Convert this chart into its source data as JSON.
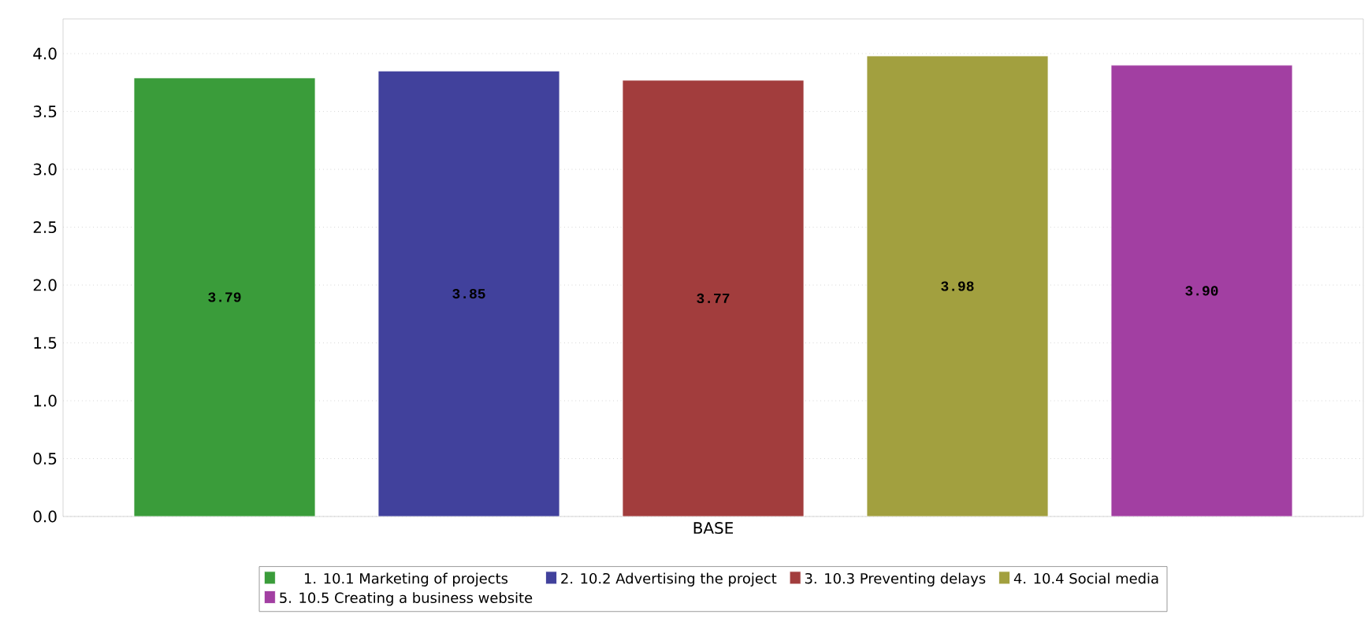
{
  "chart_data": {
    "type": "bar",
    "categories": [
      "BASE"
    ],
    "series": [
      {
        "name": "1. 10.1 Marketing of projects",
        "color": "#3a9c3a",
        "values": [
          3.79
        ],
        "value_labels": [
          "3.79"
        ]
      },
      {
        "name": "2. 10.2 Advertising the project",
        "color": "#41419c",
        "values": [
          3.85
        ],
        "value_labels": [
          "3.85"
        ]
      },
      {
        "name": "3. 10.3 Preventing delays",
        "color": "#a23d3d",
        "values": [
          3.77
        ],
        "value_labels": [
          "3.77"
        ]
      },
      {
        "name": "4. 10.4 Social media",
        "color": "#a2a03f",
        "values": [
          3.98
        ],
        "value_labels": [
          "3.98"
        ]
      },
      {
        "name": "5. 10.5 Creating a business website",
        "color": "#a23fa2",
        "values": [
          3.9
        ],
        "value_labels": [
          "3.90"
        ]
      }
    ],
    "ylim": [
      0,
      4.3
    ],
    "yticks": [
      {
        "value": 0,
        "label": "0.0"
      },
      {
        "value": 0.5,
        "label": "0.5"
      },
      {
        "value": 1,
        "label": "1.0"
      },
      {
        "value": 1.5,
        "label": "1.5"
      },
      {
        "value": 2,
        "label": "2.0"
      },
      {
        "value": 2.5,
        "label": "2.5"
      },
      {
        "value": 3,
        "label": "3.0"
      },
      {
        "value": 3.5,
        "label": "3.5"
      },
      {
        "value": 4,
        "label": "4.0"
      }
    ],
    "grid": "y",
    "legend": "bottom"
  }
}
